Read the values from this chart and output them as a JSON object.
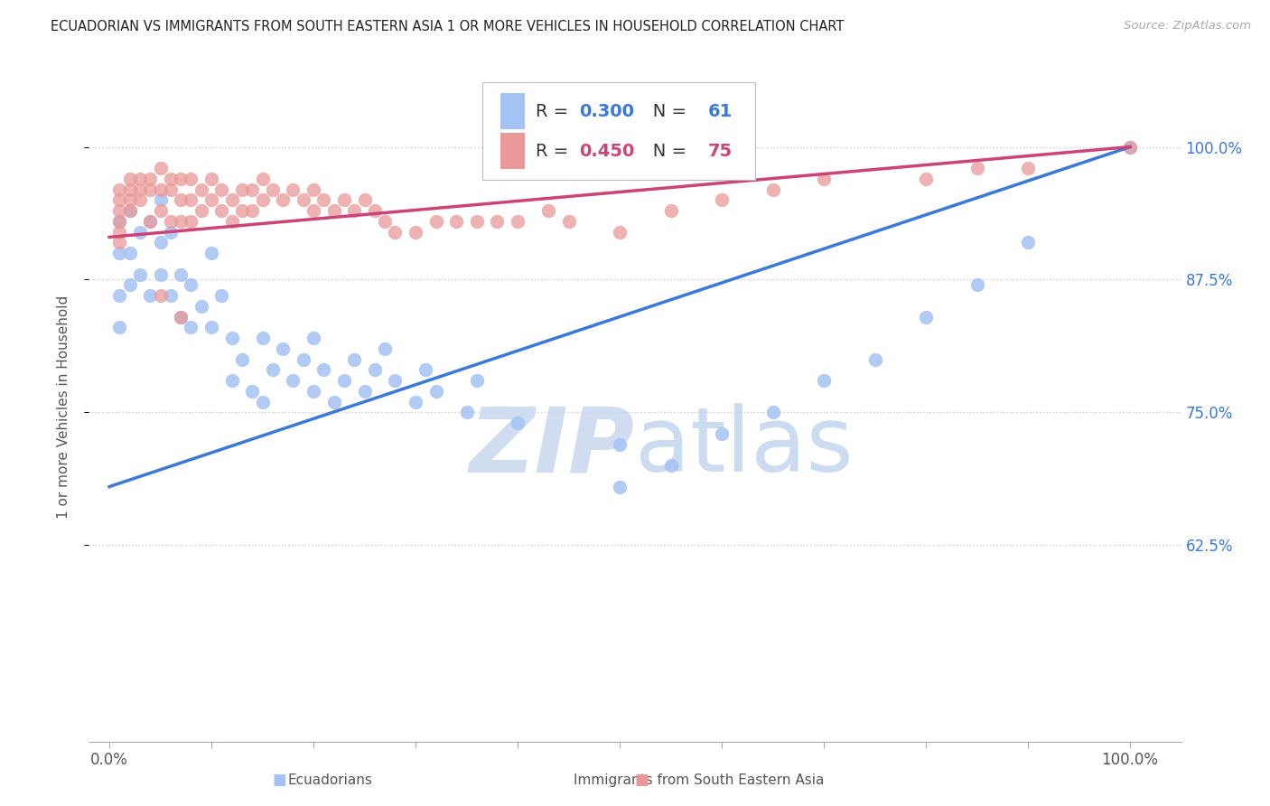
{
  "title": "ECUADORIAN VS IMMIGRANTS FROM SOUTH EASTERN ASIA 1 OR MORE VEHICLES IN HOUSEHOLD CORRELATION CHART",
  "source": "Source: ZipAtlas.com",
  "ylabel": "1 or more Vehicles in Household",
  "blue_R": 0.3,
  "blue_N": 61,
  "pink_R": 0.45,
  "pink_N": 75,
  "blue_color": "#a4c2f4",
  "pink_color": "#ea9999",
  "blue_line_color": "#3c78d8",
  "pink_line_color": "#cc4477",
  "ytick_labels": [
    "62.5%",
    "75.0%",
    "87.5%",
    "100.0%"
  ],
  "ytick_values": [
    0.625,
    0.75,
    0.875,
    1.0
  ],
  "xlim": [
    -0.02,
    1.05
  ],
  "ylim": [
    0.44,
    1.07
  ],
  "blue_line_x0": 0.0,
  "blue_line_y0": 0.68,
  "blue_line_x1": 1.0,
  "blue_line_y1": 1.0,
  "pink_line_x0": 0.0,
  "pink_line_y0": 0.915,
  "pink_line_x1": 1.0,
  "pink_line_y1": 1.0,
  "blue_x": [
    0.01,
    0.01,
    0.01,
    0.01,
    0.02,
    0.02,
    0.02,
    0.03,
    0.03,
    0.04,
    0.04,
    0.05,
    0.05,
    0.05,
    0.06,
    0.06,
    0.07,
    0.07,
    0.08,
    0.08,
    0.09,
    0.1,
    0.1,
    0.11,
    0.12,
    0.12,
    0.13,
    0.14,
    0.15,
    0.15,
    0.16,
    0.17,
    0.18,
    0.19,
    0.2,
    0.2,
    0.21,
    0.22,
    0.23,
    0.24,
    0.25,
    0.26,
    0.27,
    0.28,
    0.3,
    0.31,
    0.32,
    0.35,
    0.36,
    0.4,
    0.5,
    0.5,
    0.55,
    0.6,
    0.65,
    0.7,
    0.75,
    0.8,
    0.85,
    0.9,
    1.0
  ],
  "blue_y": [
    0.93,
    0.9,
    0.86,
    0.83,
    0.94,
    0.9,
    0.87,
    0.92,
    0.88,
    0.93,
    0.86,
    0.95,
    0.91,
    0.88,
    0.92,
    0.86,
    0.88,
    0.84,
    0.87,
    0.83,
    0.85,
    0.9,
    0.83,
    0.86,
    0.82,
    0.78,
    0.8,
    0.77,
    0.82,
    0.76,
    0.79,
    0.81,
    0.78,
    0.8,
    0.82,
    0.77,
    0.79,
    0.76,
    0.78,
    0.8,
    0.77,
    0.79,
    0.81,
    0.78,
    0.76,
    0.79,
    0.77,
    0.75,
    0.78,
    0.74,
    0.72,
    0.68,
    0.7,
    0.73,
    0.75,
    0.78,
    0.8,
    0.84,
    0.87,
    0.91,
    1.0
  ],
  "pink_x": [
    0.01,
    0.01,
    0.01,
    0.01,
    0.01,
    0.01,
    0.02,
    0.02,
    0.02,
    0.02,
    0.03,
    0.03,
    0.03,
    0.04,
    0.04,
    0.04,
    0.05,
    0.05,
    0.05,
    0.06,
    0.06,
    0.06,
    0.07,
    0.07,
    0.07,
    0.08,
    0.08,
    0.08,
    0.09,
    0.09,
    0.1,
    0.1,
    0.11,
    0.11,
    0.12,
    0.12,
    0.13,
    0.13,
    0.14,
    0.14,
    0.15,
    0.15,
    0.16,
    0.17,
    0.18,
    0.19,
    0.2,
    0.2,
    0.21,
    0.22,
    0.23,
    0.24,
    0.25,
    0.26,
    0.27,
    0.28,
    0.3,
    0.32,
    0.34,
    0.36,
    0.38,
    0.4,
    0.43,
    0.45,
    0.5,
    0.55,
    0.6,
    0.65,
    0.7,
    0.8,
    0.85,
    0.9,
    1.0,
    0.05,
    0.07
  ],
  "pink_y": [
    0.96,
    0.95,
    0.94,
    0.93,
    0.92,
    0.91,
    0.97,
    0.96,
    0.95,
    0.94,
    0.97,
    0.96,
    0.95,
    0.97,
    0.96,
    0.93,
    0.98,
    0.96,
    0.94,
    0.97,
    0.96,
    0.93,
    0.97,
    0.95,
    0.93,
    0.97,
    0.95,
    0.93,
    0.96,
    0.94,
    0.97,
    0.95,
    0.96,
    0.94,
    0.95,
    0.93,
    0.96,
    0.94,
    0.96,
    0.94,
    0.97,
    0.95,
    0.96,
    0.95,
    0.96,
    0.95,
    0.96,
    0.94,
    0.95,
    0.94,
    0.95,
    0.94,
    0.95,
    0.94,
    0.93,
    0.92,
    0.92,
    0.93,
    0.93,
    0.93,
    0.93,
    0.93,
    0.94,
    0.93,
    0.92,
    0.94,
    0.95,
    0.96,
    0.97,
    0.97,
    0.98,
    0.98,
    1.0,
    0.86,
    0.84
  ]
}
